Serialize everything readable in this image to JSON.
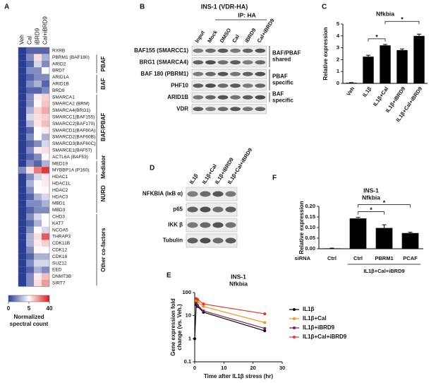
{
  "heatmap": {
    "panel": "A",
    "columns": [
      "Veh",
      "Cal",
      "iBRD9",
      "Cal+iBRD9"
    ],
    "row_groups": [
      {
        "rows": [
          "RXRB"
        ],
        "values": [
          [
            0,
            1,
            1,
            1
          ]
        ]
      },
      {
        "label": "PBAF",
        "rows": [
          "PBRM1 (BAF180)",
          "ARID2",
          "BRD7"
        ],
        "values": [
          [
            0,
            2,
            10,
            3
          ],
          [
            0,
            1,
            4,
            2
          ],
          [
            0,
            2,
            2,
            6
          ]
        ]
      },
      {
        "label": "BAF",
        "rows": [
          "ARID1A",
          "ARID1B",
          "BRD9"
        ],
        "values": [
          [
            0,
            1,
            2,
            2
          ],
          [
            0,
            2,
            3,
            1
          ],
          [
            0,
            1,
            1,
            2
          ]
        ]
      },
      {
        "label": "BAF/PBAF",
        "rows": [
          "SMARCA1",
          "SMARCA2 (BRM)",
          "SMARCA4(BRG1)",
          "SMARCC1(BAF155)",
          "SMARCC2(BAF170)",
          "SMARCD1(BAF60A)",
          "SMARCD2(BAF60B)",
          "SMARCD3(BAF60C)",
          "SMARCE1(BAF57)",
          "ACTL6A (BAF53)"
        ],
        "values": [
          [
            0,
            2,
            8,
            12
          ],
          [
            0,
            2,
            6,
            14
          ],
          [
            0,
            3,
            12,
            18
          ],
          [
            0,
            4,
            10,
            12
          ],
          [
            0,
            3,
            9,
            15
          ],
          [
            0,
            1,
            5,
            8
          ],
          [
            0,
            2,
            5,
            3
          ],
          [
            0,
            1,
            2,
            4
          ],
          [
            0,
            2,
            8,
            10
          ],
          [
            0,
            1,
            2,
            6
          ]
        ]
      },
      {
        "label": "Mediator",
        "rows": [
          "MED19",
          "MYBBP1A (P160)"
        ],
        "values": [
          [
            0,
            2,
            1,
            3
          ],
          [
            2,
            10,
            25,
            35
          ]
        ]
      },
      {
        "label": "NURD",
        "rows": [
          "HDAC1",
          "HDAC1L",
          "HDAC2",
          "HDAC3",
          "MBD1",
          "MBD3"
        ],
        "values": [
          [
            0,
            2,
            4,
            8
          ],
          [
            0,
            3,
            6,
            8
          ],
          [
            0,
            2,
            5,
            6
          ],
          [
            0,
            1,
            3,
            4
          ],
          [
            0,
            2,
            2,
            3
          ],
          [
            0,
            1,
            2,
            2
          ]
        ]
      },
      {
        "label": "Other co-factors",
        "rows": [
          "CHD3",
          "KAT7",
          "NCOA5",
          "THRAP3",
          "CDK11B",
          "CDK12",
          "CDK18",
          "SUZ12",
          "EED",
          "DNMT3B",
          "SIRT7"
        ],
        "values": [
          [
            0,
            2,
            4,
            5
          ],
          [
            0,
            1,
            3,
            6
          ],
          [
            0,
            2,
            5,
            4
          ],
          [
            0,
            3,
            10,
            30
          ],
          [
            0,
            3,
            8,
            12
          ],
          [
            0,
            2,
            6,
            5
          ],
          [
            0,
            1,
            3,
            3
          ],
          [
            0,
            2,
            4,
            4
          ],
          [
            0,
            1,
            3,
            2
          ],
          [
            0,
            2,
            8,
            15
          ],
          [
            0,
            2,
            10,
            20
          ]
        ]
      }
    ],
    "colorbar_ticks": [
      0,
      5,
      40
    ],
    "colorbar_colors": [
      "#2c3e94",
      "#ffffff",
      "#d7191c"
    ],
    "colorbar_label": [
      "Normalized",
      "spectral count"
    ]
  },
  "blot_b": {
    "panel": "B",
    "title": "INS-1 (VDR-HA)",
    "ip_label": "IP: HA",
    "lanes": [
      "Input",
      "Mock",
      "DMSO",
      "Cal",
      "iBRD9",
      "Cal+iBRD9"
    ],
    "row_groups": [
      {
        "label": [
          "BAF/PBAF",
          "shared"
        ],
        "rows": [
          "BAF155 (SMARCC1)",
          "BRG1 (SMARCA4)"
        ]
      },
      {
        "label": [
          "PBAF",
          "specific"
        ],
        "rows": [
          "BAF 180 (PBRM1)",
          "PHF10"
        ]
      },
      {
        "label": [
          "BAF",
          "specific"
        ],
        "rows": [
          "ARID1B"
        ]
      },
      {
        "rows": [
          "VDR"
        ]
      }
    ]
  },
  "blot_d": {
    "panel": "D",
    "lanes": [
      "IL1β",
      "IL1β+Cal",
      "IL1β+iBRD9",
      "IL1β+Cal+iBRD9"
    ],
    "rows": [
      "NFKBIA (IκB α)",
      "p65",
      "IKK β",
      "Tubulin"
    ]
  },
  "chart_data": [
    {
      "type": "bar",
      "panel": "C",
      "title": "Nfkbia",
      "y_label": "Relative expression",
      "categories": [
        "Veh",
        "IL1β",
        "IL1β+Cal",
        "IL1β+iBRD9",
        "IL1β+Cal+iBRD9"
      ],
      "values": [
        0.05,
        2.25,
        3.2,
        2.8,
        4.0
      ],
      "errors": [
        0.02,
        0.12,
        0.08,
        0.1,
        0.15
      ],
      "color": "#000000",
      "ylim": [
        0,
        5
      ],
      "yticks": [
        0,
        1,
        2,
        3,
        4,
        5
      ],
      "significance": [
        {
          "label": "*",
          "between": [
            1,
            2
          ]
        },
        {
          "label": "*",
          "between": [
            2,
            4
          ]
        }
      ]
    },
    {
      "type": "line",
      "panel": "E",
      "title": [
        "INS-1",
        "Nfkbia"
      ],
      "x_label": "Time after IL1β stress (hr)",
      "y_label": [
        "Gene expression fold",
        "change (vs. Veh.)"
      ],
      "x": [
        0,
        0.5,
        1,
        3,
        24
      ],
      "series": [
        {
          "name": "IL1β",
          "color": "#000000",
          "values": [
            1,
            30,
            25,
            14,
            2.2
          ]
        },
        {
          "name": "IL1β+Cal",
          "color": "#f7941d",
          "values": [
            null,
            45,
            40,
            25,
            5
          ]
        },
        {
          "name": "IL1β+iBRD9",
          "color": "#7b1f5e",
          "values": [
            null,
            35,
            28,
            16,
            2.8
          ]
        },
        {
          "name": "IL1β+Cal+iBRD9",
          "color": "#e8322b",
          "values": [
            null,
            55,
            50,
            32,
            12
          ]
        }
      ],
      "xlim": [
        0,
        30
      ],
      "xticks": [
        0,
        10,
        20,
        30
      ],
      "ylim": [
        0.1,
        100
      ],
      "yticks": [
        0.1,
        1,
        10,
        100
      ],
      "log_y": true,
      "legend": "right"
    },
    {
      "type": "bar",
      "panel": "F",
      "title": [
        "INS-1",
        "Nfkbia"
      ],
      "y_label": "Relative expression",
      "x_label": "siRNA",
      "categories": [
        "Ctrl",
        "Ctrl",
        "PBRM1",
        "PCAF"
      ],
      "group_label": "IL1β+Cal+iBRD9",
      "values": [
        0.002,
        0.143,
        0.098,
        0.074
      ],
      "errors": [
        0.001,
        0.005,
        0.015,
        0.004
      ],
      "color": "#000000",
      "ylim": [
        0,
        0.2
      ],
      "yticks": [
        {
          "value": 0,
          "label": "0.00"
        },
        0.05,
        {
          "value": 0.1,
          "label": "0.10"
        },
        0.15,
        {
          "value": 0.2,
          "label": "0.20"
        }
      ],
      "significance": [
        {
          "label": "*",
          "between": [
            1,
            2
          ]
        },
        {
          "label": "*",
          "between": [
            1,
            3
          ]
        }
      ]
    }
  ]
}
